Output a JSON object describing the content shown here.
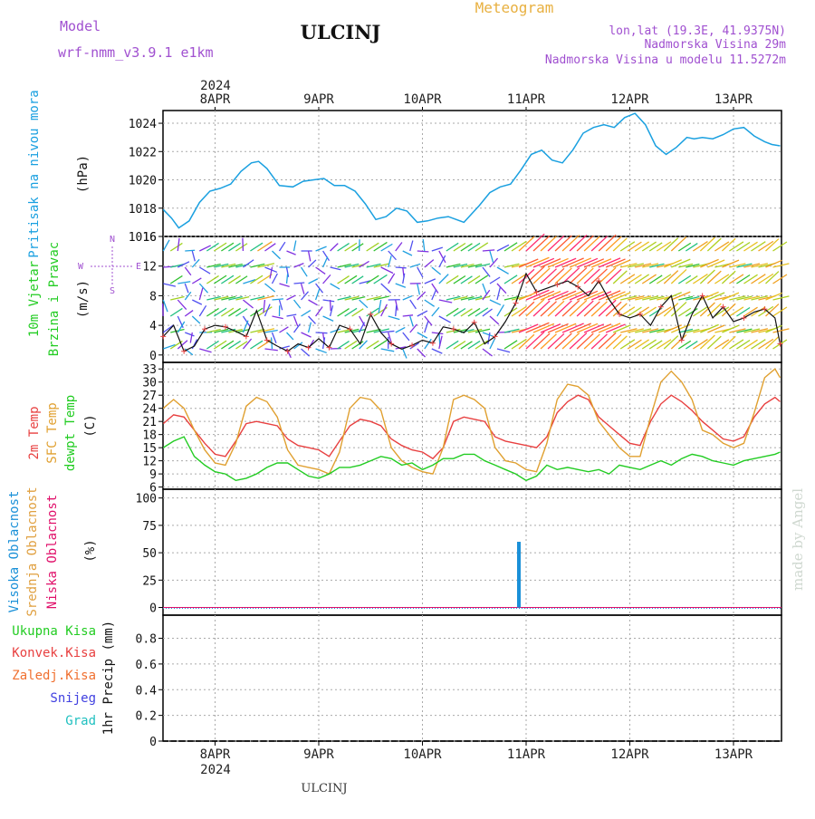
{
  "header": {
    "model_label": "Model",
    "model_value": "wrf-nmm_v3.9.1  e1km",
    "station": "ULCINJ",
    "product": "Meteogram",
    "coords": "lon,lat (19.3E, 41.9375N)",
    "elevation": "Nadmorska Visina 29m",
    "model_elevation": "Nadmorska Visina u modelu 11.5272m",
    "credit": "made by Angel",
    "footer_station": "ULCINJ"
  },
  "colors": {
    "pressure": "#1aa0e0",
    "temp2m": "#e84040",
    "sfc_temp": "#e0a030",
    "dewpoint": "#22cc22",
    "cloud_high": "#1a90d8",
    "cloud_mid": "#e0a040",
    "cloud_low": "#e0106a",
    "title_purple": "#a050d0",
    "title_orange": "#e8b040"
  },
  "time_axis": {
    "year": "2024",
    "days": [
      "8APR",
      "9APR",
      "10APR",
      "11APR",
      "12APR",
      "13APR"
    ]
  },
  "chart_data": [
    {
      "type": "line",
      "panel": "pressure",
      "ylabel": [
        "Pritisak na nivou mora",
        "(hPa)"
      ],
      "yticks": [
        1016,
        1018,
        1020,
        1022,
        1024
      ],
      "ylim": [
        1016,
        1024.9
      ],
      "x_days": [
        -0.5,
        -0.42,
        -0.35,
        -0.25,
        -0.15,
        -0.05,
        0.05,
        0.15,
        0.25,
        0.35,
        0.42,
        0.5,
        0.62,
        0.75,
        0.85,
        0.95,
        1.05,
        1.15,
        1.25,
        1.35,
        1.45,
        1.55,
        1.65,
        1.75,
        1.85,
        1.95,
        2.05,
        2.15,
        2.25,
        2.4,
        2.55,
        2.65,
        2.75,
        2.85,
        2.95,
        3.05,
        3.15,
        3.25,
        3.35,
        3.45,
        3.55,
        3.65,
        3.75,
        3.85,
        3.95,
        4.05,
        4.15,
        4.25,
        4.35,
        4.45,
        4.55,
        4.62,
        4.7,
        4.8,
        4.9,
        5.0,
        5.1,
        5.2,
        5.3,
        5.37,
        5.45
      ],
      "values": [
        1017.9,
        1017.3,
        1016.6,
        1017.1,
        1018.4,
        1019.2,
        1019.4,
        1019.7,
        1020.6,
        1021.2,
        1021.3,
        1020.8,
        1019.6,
        1019.5,
        1019.9,
        1020.0,
        1020.1,
        1019.6,
        1019.6,
        1019.2,
        1018.3,
        1017.2,
        1017.4,
        1018.0,
        1017.8,
        1017.0,
        1017.1,
        1017.3,
        1017.4,
        1017.0,
        1018.2,
        1019.1,
        1019.5,
        1019.7,
        1020.7,
        1021.8,
        1022.1,
        1021.4,
        1021.2,
        1022.1,
        1023.3,
        1023.7,
        1023.9,
        1023.7,
        1024.4,
        1024.7,
        1023.9,
        1022.4,
        1021.8,
        1022.3,
        1023.0,
        1022.9,
        1023.0,
        1022.9,
        1023.2,
        1023.6,
        1023.7,
        1023.1,
        1022.7,
        1022.5,
        1022.4
      ]
    },
    {
      "type": "line",
      "panel": "wind",
      "ylabel": [
        "10m Vjetar",
        "Brzina i Pravac",
        "(m/s)"
      ],
      "yticks": [
        0,
        4,
        8,
        12,
        16
      ],
      "ylim": [
        -1,
        16
      ],
      "compass": [
        "N",
        "W",
        "E",
        "S"
      ],
      "x_days": [
        -0.5,
        -0.4,
        -0.3,
        -0.2,
        -0.1,
        0.0,
        0.1,
        0.2,
        0.3,
        0.4,
        0.5,
        0.6,
        0.7,
        0.8,
        0.9,
        1.0,
        1.1,
        1.2,
        1.3,
        1.4,
        1.5,
        1.6,
        1.7,
        1.8,
        1.9,
        2.0,
        2.1,
        2.2,
        2.3,
        2.4,
        2.5,
        2.6,
        2.7,
        2.8,
        2.9,
        3.0,
        3.1,
        3.2,
        3.3,
        3.4,
        3.5,
        3.6,
        3.7,
        3.8,
        3.9,
        4.0,
        4.1,
        4.2,
        4.3,
        4.4,
        4.5,
        4.6,
        4.7,
        4.8,
        4.9,
        5.0,
        5.1,
        5.2,
        5.3,
        5.4,
        5.45
      ],
      "values": [
        2.5,
        4.0,
        0.5,
        1.2,
        3.5,
        4.0,
        3.8,
        3.2,
        2.5,
        6.0,
        2.0,
        1.2,
        0.5,
        1.5,
        1.0,
        2.2,
        1.0,
        4.0,
        3.5,
        1.5,
        5.5,
        3.0,
        1.5,
        0.8,
        1.3,
        2.0,
        1.6,
        3.8,
        3.5,
        3.0,
        4.4,
        1.5,
        2.5,
        4.5,
        7.0,
        11.0,
        8.5,
        9.0,
        9.5,
        10.0,
        9.2,
        8.0,
        10.0,
        7.5,
        5.5,
        5.0,
        5.5,
        4.0,
        6.5,
        8.0,
        2.0,
        5.5,
        8.0,
        5.0,
        6.5,
        4.5,
        5.0,
        5.8,
        6.2,
        5.0,
        1.5
      ]
    },
    {
      "type": "line",
      "panel": "temperature",
      "ylabel": [
        "2m Temp",
        "SFC Temp",
        "dewpt Temp",
        "(C)"
      ],
      "yticks": [
        6,
        9,
        12,
        15,
        18,
        21,
        24,
        27,
        30,
        33
      ],
      "ylim": [
        5.5,
        34.5
      ],
      "x_days": [
        -0.5,
        -0.4,
        -0.3,
        -0.2,
        -0.1,
        0.0,
        0.1,
        0.2,
        0.3,
        0.4,
        0.5,
        0.6,
        0.7,
        0.8,
        0.9,
        1.0,
        1.1,
        1.2,
        1.3,
        1.4,
        1.5,
        1.6,
        1.7,
        1.8,
        1.9,
        2.0,
        2.1,
        2.2,
        2.3,
        2.4,
        2.5,
        2.6,
        2.7,
        2.8,
        2.9,
        3.0,
        3.1,
        3.2,
        3.3,
        3.4,
        3.5,
        3.6,
        3.7,
        3.8,
        3.9,
        4.0,
        4.1,
        4.2,
        4.3,
        4.4,
        4.5,
        4.6,
        4.7,
        4.8,
        4.9,
        5.0,
        5.1,
        5.2,
        5.3,
        5.4,
        5.45
      ],
      "series": [
        {
          "name": "2m Temp",
          "values": [
            20.5,
            22.5,
            22.0,
            19.0,
            16.0,
            13.5,
            13.0,
            16.5,
            20.5,
            21.0,
            20.5,
            20.0,
            17.0,
            15.5,
            15.0,
            14.5,
            13.0,
            16.5,
            20.0,
            21.5,
            21.0,
            20.0,
            17.0,
            15.5,
            14.5,
            14.0,
            12.5,
            15.0,
            21.0,
            22.0,
            21.5,
            21.0,
            17.5,
            16.5,
            16.0,
            15.5,
            15.0,
            17.5,
            23.0,
            25.5,
            27.0,
            26.0,
            22.0,
            20.0,
            18.0,
            16.0,
            15.5,
            21.0,
            25.0,
            27.0,
            25.5,
            23.5,
            21.0,
            19.0,
            17.0,
            16.5,
            17.5,
            22.0,
            25.0,
            26.5,
            25.5
          ]
        },
        {
          "name": "SFC Temp",
          "values": [
            24.0,
            26.0,
            24.0,
            19.0,
            14.5,
            11.5,
            11.0,
            16.0,
            24.5,
            26.5,
            25.5,
            22.0,
            14.5,
            11.0,
            10.5,
            10.0,
            9.0,
            14.0,
            24.0,
            26.5,
            26.0,
            23.5,
            15.0,
            12.0,
            10.5,
            9.5,
            9.0,
            15.0,
            26.0,
            27.0,
            26.0,
            24.0,
            15.0,
            12.0,
            11.5,
            10.0,
            9.5,
            16.0,
            26.0,
            29.5,
            29.0,
            27.0,
            21.0,
            18.0,
            15.0,
            13.0,
            13.0,
            22.0,
            30.0,
            32.5,
            30.0,
            26.0,
            19.0,
            18.0,
            16.0,
            15.0,
            16.0,
            23.0,
            31.0,
            33.0,
            31.0
          ]
        },
        {
          "name": "dewpt Temp",
          "values": [
            15.0,
            16.5,
            17.5,
            13.0,
            11.0,
            9.5,
            9.0,
            7.5,
            8.0,
            9.0,
            10.5,
            11.5,
            11.5,
            10.0,
            8.5,
            8.0,
            9.0,
            10.5,
            10.5,
            11.0,
            12.0,
            13.0,
            12.5,
            11.0,
            11.5,
            10.0,
            11.0,
            12.5,
            12.5,
            13.5,
            13.5,
            12.0,
            11.0,
            10.0,
            9.0,
            7.5,
            8.5,
            11.0,
            10.0,
            10.5,
            10.0,
            9.5,
            10.0,
            9.0,
            11.0,
            10.5,
            10.0,
            11.0,
            12.0,
            11.0,
            12.5,
            13.5,
            13.0,
            12.0,
            11.5,
            11.0,
            12.0,
            12.5,
            13.0,
            13.5,
            14.0
          ]
        }
      ]
    },
    {
      "type": "bar",
      "panel": "cloud",
      "ylabel": [
        "Visoka Oblacnost",
        "Srednja Oblacnost",
        "Niska Oblacnost",
        "(%)"
      ],
      "yticks": [
        0,
        25,
        50,
        75,
        100
      ],
      "ylim": [
        -7,
        108
      ],
      "series": [
        {
          "name": "Visoka Oblacnost",
          "x_days": [
            2.93
          ],
          "values": [
            60
          ]
        },
        {
          "name": "Srednja Oblacnost",
          "x_days": [],
          "values": []
        },
        {
          "name": "Niska Oblacnost",
          "x_days": [],
          "values": []
        }
      ]
    },
    {
      "type": "bar",
      "panel": "precip",
      "ylabel": [
        "1hr Precip (mm)"
      ],
      "legend": [
        "Ukupna Kisa",
        "Konvek.Kisa",
        "Zaledj.Kisa",
        "Snijeg",
        "Grad"
      ],
      "yticks": [
        0,
        0.2,
        0.4,
        0.6,
        0.8
      ],
      "ylim": [
        0,
        0.98
      ],
      "series": []
    }
  ]
}
